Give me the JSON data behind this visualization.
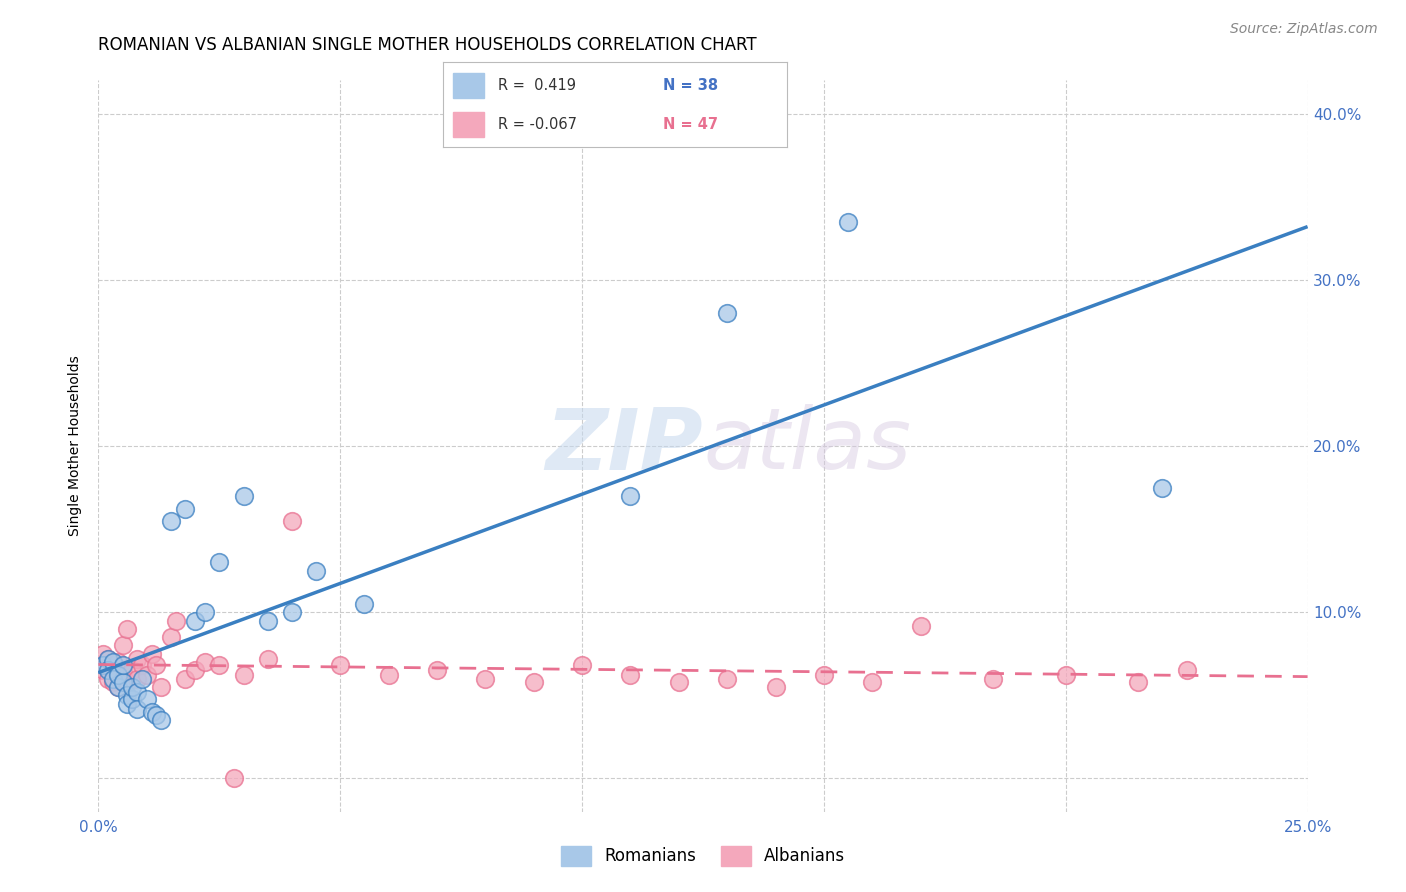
{
  "title": "ROMANIAN VS ALBANIAN SINGLE MOTHER HOUSEHOLDS CORRELATION CHART",
  "source": "Source: ZipAtlas.com",
  "ylabel": "Single Mother Households",
  "xlim": [
    0.0,
    0.25
  ],
  "ylim": [
    -0.02,
    0.42
  ],
  "watermark_zip": "ZIP",
  "watermark_atlas": "atlas",
  "romanian_color": "#a8c8e8",
  "albanian_color": "#f4a8bc",
  "trend_romanian_color": "#3a7fc1",
  "trend_albanian_color": "#e87090",
  "background_color": "#ffffff",
  "title_fontsize": 12,
  "axis_label_fontsize": 10,
  "tick_fontsize": 11,
  "source_fontsize": 10,
  "dot_size": 160,
  "dot_alpha": 0.75,
  "dot_linewidth": 1.2,
  "romanian_x": [
    0.001,
    0.002,
    0.002,
    0.003,
    0.003,
    0.004,
    0.004,
    0.005,
    0.005,
    0.006,
    0.006,
    0.007,
    0.007,
    0.008,
    0.008,
    0.009,
    0.01,
    0.011,
    0.012,
    0.013,
    0.015,
    0.018,
    0.02,
    0.022,
    0.025,
    0.03,
    0.035,
    0.04,
    0.045,
    0.055,
    0.11,
    0.13,
    0.155,
    0.22
  ],
  "romanian_y": [
    0.068,
    0.072,
    0.065,
    0.07,
    0.06,
    0.055,
    0.062,
    0.058,
    0.068,
    0.05,
    0.045,
    0.048,
    0.055,
    0.052,
    0.042,
    0.06,
    0.048,
    0.04,
    0.038,
    0.035,
    0.155,
    0.162,
    0.095,
    0.1,
    0.13,
    0.17,
    0.095,
    0.1,
    0.125,
    0.105,
    0.17,
    0.28,
    0.335,
    0.175
  ],
  "albanian_x": [
    0.001,
    0.001,
    0.002,
    0.002,
    0.003,
    0.003,
    0.004,
    0.004,
    0.005,
    0.005,
    0.006,
    0.006,
    0.007,
    0.008,
    0.008,
    0.009,
    0.01,
    0.011,
    0.012,
    0.013,
    0.015,
    0.016,
    0.018,
    0.02,
    0.022,
    0.025,
    0.028,
    0.03,
    0.035,
    0.04,
    0.05,
    0.06,
    0.07,
    0.08,
    0.09,
    0.1,
    0.11,
    0.12,
    0.13,
    0.14,
    0.15,
    0.16,
    0.17,
    0.185,
    0.2,
    0.215,
    0.225
  ],
  "albanian_y": [
    0.075,
    0.065,
    0.072,
    0.06,
    0.068,
    0.058,
    0.07,
    0.055,
    0.065,
    0.08,
    0.058,
    0.09,
    0.065,
    0.072,
    0.06,
    0.068,
    0.062,
    0.075,
    0.068,
    0.055,
    0.085,
    0.095,
    0.06,
    0.065,
    0.07,
    0.068,
    0.0,
    0.062,
    0.072,
    0.155,
    0.068,
    0.062,
    0.065,
    0.06,
    0.058,
    0.068,
    0.062,
    0.058,
    0.06,
    0.055,
    0.062,
    0.058,
    0.092,
    0.06,
    0.062,
    0.058,
    0.065
  ]
}
